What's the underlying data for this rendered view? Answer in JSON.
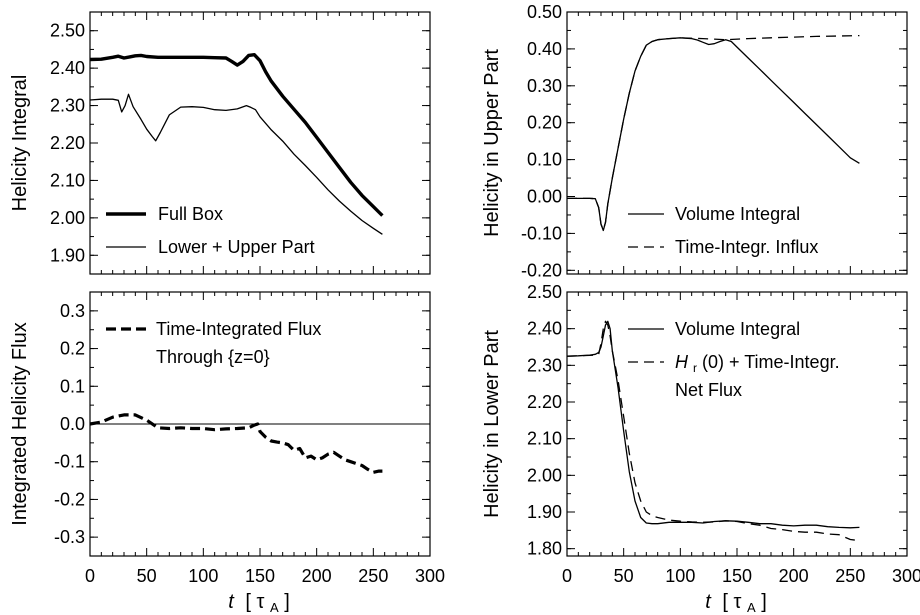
{
  "chart_data": [
    {
      "type": "line",
      "xlabel": "",
      "ylabel": "Helicity Integral",
      "xlim": [
        0,
        300
      ],
      "ylim": [
        1.85,
        2.55
      ],
      "x_ticks": [
        "0",
        "50",
        "100",
        "150",
        "200",
        "250",
        "300"
      ],
      "y_ticks": [
        1.9,
        2.0,
        2.1,
        2.2,
        2.3,
        2.4,
        2.5
      ],
      "y_tick_labels": [
        "1.90",
        "2.00",
        "2.10",
        "2.20",
        "2.30",
        "2.40",
        "2.50"
      ],
      "legend_position": "bottom-left",
      "series": [
        {
          "name": "Full Box",
          "style": "solid-thick",
          "x": [
            0,
            10,
            20,
            25,
            30,
            35,
            40,
            45,
            50,
            60,
            80,
            100,
            110,
            120,
            125,
            130,
            135,
            140,
            145,
            150,
            155,
            160,
            170,
            180,
            190,
            200,
            210,
            220,
            230,
            240,
            250,
            258
          ],
          "y": [
            2.423,
            2.424,
            2.429,
            2.432,
            2.427,
            2.43,
            2.433,
            2.434,
            2.431,
            2.429,
            2.429,
            2.429,
            2.428,
            2.427,
            2.418,
            2.408,
            2.418,
            2.434,
            2.436,
            2.42,
            2.39,
            2.365,
            2.325,
            2.29,
            2.255,
            2.215,
            2.175,
            2.135,
            2.095,
            2.06,
            2.03,
            2.006
          ]
        },
        {
          "name": "Lower + Upper Part",
          "style": "solid-thin",
          "x": [
            0,
            10,
            20,
            25,
            28,
            31,
            34,
            38,
            45,
            50,
            55,
            58,
            62,
            70,
            80,
            90,
            100,
            110,
            120,
            130,
            138,
            142,
            146,
            150,
            160,
            170,
            180,
            190,
            200,
            210,
            220,
            230,
            240,
            250,
            258
          ],
          "y": [
            2.315,
            2.317,
            2.317,
            2.314,
            2.283,
            2.3,
            2.33,
            2.297,
            2.263,
            2.237,
            2.217,
            2.206,
            2.228,
            2.275,
            2.296,
            2.297,
            2.295,
            2.289,
            2.287,
            2.291,
            2.3,
            2.295,
            2.289,
            2.27,
            2.235,
            2.205,
            2.17,
            2.14,
            2.108,
            2.075,
            2.045,
            2.018,
            1.993,
            1.972,
            1.956
          ]
        }
      ]
    },
    {
      "type": "line",
      "xlabel": "",
      "ylabel": "Helicity in Upper Part",
      "xlim": [
        0,
        300
      ],
      "ylim": [
        -0.21,
        0.5
      ],
      "x_ticks": [
        "0",
        "50",
        "100",
        "150",
        "200",
        "250",
        "300"
      ],
      "y_ticks": [
        -0.2,
        -0.1,
        0.0,
        0.1,
        0.2,
        0.3,
        0.4,
        0.5
      ],
      "y_tick_labels": [
        "-0.20",
        "-0.10",
        "0.00",
        "0.10",
        "0.20",
        "0.30",
        "0.40",
        "0.50"
      ],
      "legend_position": "bottom-right",
      "series": [
        {
          "name": "Volume Integral",
          "style": "solid",
          "x": [
            0,
            10,
            20,
            25,
            28,
            30,
            32,
            34,
            36,
            40,
            45,
            50,
            55,
            60,
            65,
            70,
            75,
            80,
            90,
            100,
            110,
            115,
            120,
            125,
            130,
            135,
            140,
            145,
            150,
            160,
            170,
            180,
            190,
            200,
            210,
            220,
            230,
            240,
            250,
            258
          ],
          "y": [
            -0.005,
            -0.005,
            -0.005,
            -0.006,
            -0.03,
            -0.075,
            -0.092,
            -0.07,
            -0.02,
            0.05,
            0.13,
            0.21,
            0.28,
            0.34,
            0.38,
            0.41,
            0.42,
            0.425,
            0.428,
            0.43,
            0.428,
            0.424,
            0.418,
            0.412,
            0.414,
            0.42,
            0.425,
            0.42,
            0.405,
            0.375,
            0.345,
            0.315,
            0.285,
            0.255,
            0.225,
            0.195,
            0.165,
            0.135,
            0.105,
            0.09
          ]
        },
        {
          "name": "Time-Integr. Influx",
          "style": "dashed",
          "x": [
            0,
            10,
            20,
            25,
            28,
            30,
            32,
            34,
            36,
            40,
            45,
            50,
            55,
            60,
            65,
            70,
            75,
            80,
            90,
            100,
            120,
            140,
            160,
            180,
            200,
            220,
            240,
            258
          ],
          "y": [
            -0.005,
            -0.005,
            -0.005,
            -0.006,
            -0.03,
            -0.075,
            -0.09,
            -0.07,
            -0.02,
            0.05,
            0.13,
            0.21,
            0.28,
            0.34,
            0.38,
            0.41,
            0.42,
            0.425,
            0.428,
            0.43,
            0.428,
            0.425,
            0.428,
            0.43,
            0.432,
            0.434,
            0.435,
            0.436
          ]
        }
      ]
    },
    {
      "type": "line",
      "xlabel": "t [τA]",
      "ylabel": "Integrated Helicity Flux",
      "xlim": [
        0,
        300
      ],
      "ylim": [
        -0.35,
        0.35
      ],
      "x_ticks": [
        "0",
        "50",
        "100",
        "150",
        "200",
        "250",
        "300"
      ],
      "y_ticks": [
        -0.3,
        -0.2,
        -0.1,
        0.0,
        0.1,
        0.2,
        0.3
      ],
      "y_tick_labels": [
        "-0.3",
        "-0.2",
        "-0.1",
        "0.0",
        "0.1",
        "0.2",
        "0.3"
      ],
      "reference_line_y": 0.0,
      "legend_position": "top-right",
      "series": [
        {
          "name": "Time-Integrated Flux Through {z=0}",
          "style": "dashed-thick",
          "x": [
            0,
            10,
            20,
            30,
            40,
            50,
            60,
            70,
            80,
            90,
            100,
            110,
            120,
            130,
            140,
            145,
            148,
            150,
            155,
            160,
            165,
            170,
            175,
            180,
            185,
            190,
            195,
            200,
            205,
            210,
            215,
            220,
            225,
            230,
            235,
            240,
            245,
            250,
            255,
            258
          ],
          "y": [
            0.0,
            0.005,
            0.018,
            0.024,
            0.024,
            0.01,
            -0.01,
            -0.012,
            -0.01,
            -0.012,
            -0.012,
            -0.015,
            -0.013,
            -0.012,
            -0.01,
            -0.003,
            0.0,
            -0.02,
            -0.035,
            -0.045,
            -0.048,
            -0.05,
            -0.055,
            -0.07,
            -0.065,
            -0.09,
            -0.085,
            -0.095,
            -0.09,
            -0.08,
            -0.075,
            -0.085,
            -0.095,
            -0.1,
            -0.105,
            -0.11,
            -0.12,
            -0.128,
            -0.125,
            -0.125
          ]
        }
      ]
    },
    {
      "type": "line",
      "xlabel": "t [τA]",
      "ylabel": "Helicity in Lower Part",
      "xlim": [
        0,
        300
      ],
      "ylim": [
        1.78,
        2.5
      ],
      "x_ticks": [
        "0",
        "50",
        "100",
        "150",
        "200",
        "250",
        "300"
      ],
      "y_ticks": [
        1.8,
        1.9,
        2.0,
        2.1,
        2.2,
        2.3,
        2.4,
        2.5
      ],
      "y_tick_labels": [
        "1.80",
        "1.90",
        "2.00",
        "2.10",
        "2.20",
        "2.30",
        "2.40",
        "2.50"
      ],
      "legend_position": "top-right",
      "series": [
        {
          "name": "Volume Integral",
          "style": "solid",
          "x": [
            0,
            10,
            20,
            25,
            28,
            30,
            32,
            34,
            36,
            38,
            40,
            45,
            50,
            55,
            60,
            65,
            70,
            75,
            80,
            90,
            100,
            110,
            120,
            130,
            140,
            150,
            160,
            170,
            180,
            190,
            200,
            210,
            220,
            230,
            240,
            250,
            258
          ],
          "y": [
            2.325,
            2.326,
            2.328,
            2.33,
            2.335,
            2.35,
            2.38,
            2.41,
            2.42,
            2.4,
            2.34,
            2.24,
            2.12,
            2.01,
            1.93,
            1.885,
            1.87,
            1.868,
            1.868,
            1.872,
            1.872,
            1.872,
            1.87,
            1.874,
            1.876,
            1.875,
            1.872,
            1.868,
            1.868,
            1.864,
            1.862,
            1.864,
            1.864,
            1.86,
            1.858,
            1.857,
            1.858
          ]
        },
        {
          "name": "Hr(0) + Time-Integr. Net Flux",
          "style": "dashed",
          "x": [
            0,
            10,
            20,
            25,
            28,
            30,
            32,
            34,
            36,
            38,
            40,
            45,
            50,
            55,
            60,
            65,
            70,
            75,
            80,
            90,
            100,
            110,
            120,
            130,
            140,
            150,
            160,
            170,
            180,
            190,
            200,
            210,
            220,
            230,
            240,
            250,
            258
          ],
          "y": [
            2.325,
            2.326,
            2.327,
            2.328,
            2.33,
            2.36,
            2.4,
            2.42,
            2.41,
            2.38,
            2.34,
            2.26,
            2.16,
            2.06,
            1.98,
            1.93,
            1.9,
            1.89,
            1.885,
            1.878,
            1.875,
            1.873,
            1.872,
            1.873,
            1.876,
            1.874,
            1.868,
            1.864,
            1.855,
            1.852,
            1.847,
            1.845,
            1.845,
            1.84,
            1.838,
            1.825,
            1.822
          ]
        }
      ]
    }
  ],
  "legend": {
    "panel1": [
      "Full Box",
      "Lower + Upper Part"
    ],
    "panel2": [
      "Volume Integral",
      "Time-Integr. Influx"
    ],
    "panel3_line1": "Time-Integrated Flux",
    "panel3_line2": "Through {z=0}",
    "panel4_line1": "Volume Integral",
    "panel4_line2_prefix": "(0) + Time-Integr.",
    "panel4_line2_H": "H",
    "panel4_line2_sub": "r",
    "panel4_line3": "Net Flux"
  },
  "xaxis_label": {
    "var": "t",
    "open": "[",
    "tau": "τ",
    "sub": "A",
    "close": "]"
  }
}
